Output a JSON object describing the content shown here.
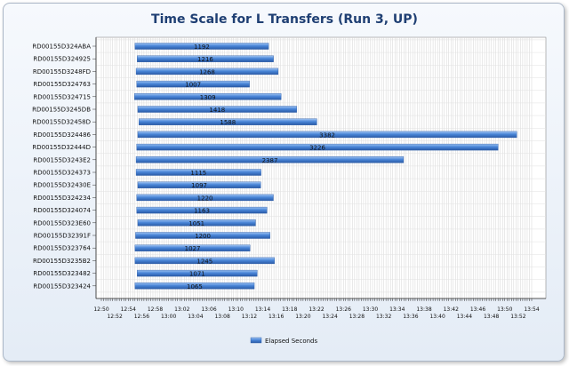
{
  "chart_data": {
    "type": "bar",
    "orientation": "horizontal-gantt",
    "title": "Time Scale for L Transfers (Run 3, UP)",
    "xlabel": "",
    "ylabel": "",
    "x_range": [
      "12:50",
      "13:54"
    ],
    "x_ticks": [
      "12:50",
      "12:52",
      "12:54",
      "12:56",
      "12:58",
      "13:00",
      "13:02",
      "13:04",
      "13:06",
      "13:08",
      "13:10",
      "13:12",
      "13:14",
      "13:16",
      "13:18",
      "13:20",
      "13:22",
      "13:24",
      "13:26",
      "13:28",
      "13:30",
      "13:32",
      "13:34",
      "13:36",
      "13:38",
      "13:40",
      "13:42",
      "13:44",
      "13:46",
      "13:48",
      "13:50",
      "13:52",
      "13:54"
    ],
    "grid": true,
    "legend_position": "bottom",
    "series": [
      {
        "name": "Elapsed Seconds",
        "color": "#4a86d8",
        "categories": [
          "RD00155D324ABA",
          "RD00155D324925",
          "RD00155D3248FD",
          "RD00155D324763",
          "RD00155D324715",
          "RD00155D3245DB",
          "RD00155D32458D",
          "RD00155D324486",
          "RD00155D32444D",
          "RD00155D3243E2",
          "RD00155D324373",
          "RD00155D32430E",
          "RD00155D324234",
          "RD00155D324074",
          "RD00155D323E60",
          "RD00155D32391F",
          "RD00155D323764",
          "RD00155D3235B2",
          "RD00155D323482",
          "RD00155D323424"
        ],
        "start": [
          "12:55:00",
          "12:55:20",
          "12:55:10",
          "12:55:15",
          "12:54:55",
          "12:55:25",
          "12:55:35",
          "12:55:25",
          "12:55:15",
          "12:55:10",
          "12:55:10",
          "12:55:25",
          "12:55:15",
          "12:55:15",
          "12:55:25",
          "12:55:05",
          "12:55:00",
          "12:55:00",
          "12:55:20",
          "12:55:00"
        ],
        "values": [
          1192,
          1216,
          1268,
          1007,
          1309,
          1418,
          1588,
          3382,
          3226,
          2387,
          1115,
          1097,
          1220,
          1163,
          1051,
          1200,
          1027,
          1245,
          1071,
          1065
        ]
      }
    ]
  }
}
